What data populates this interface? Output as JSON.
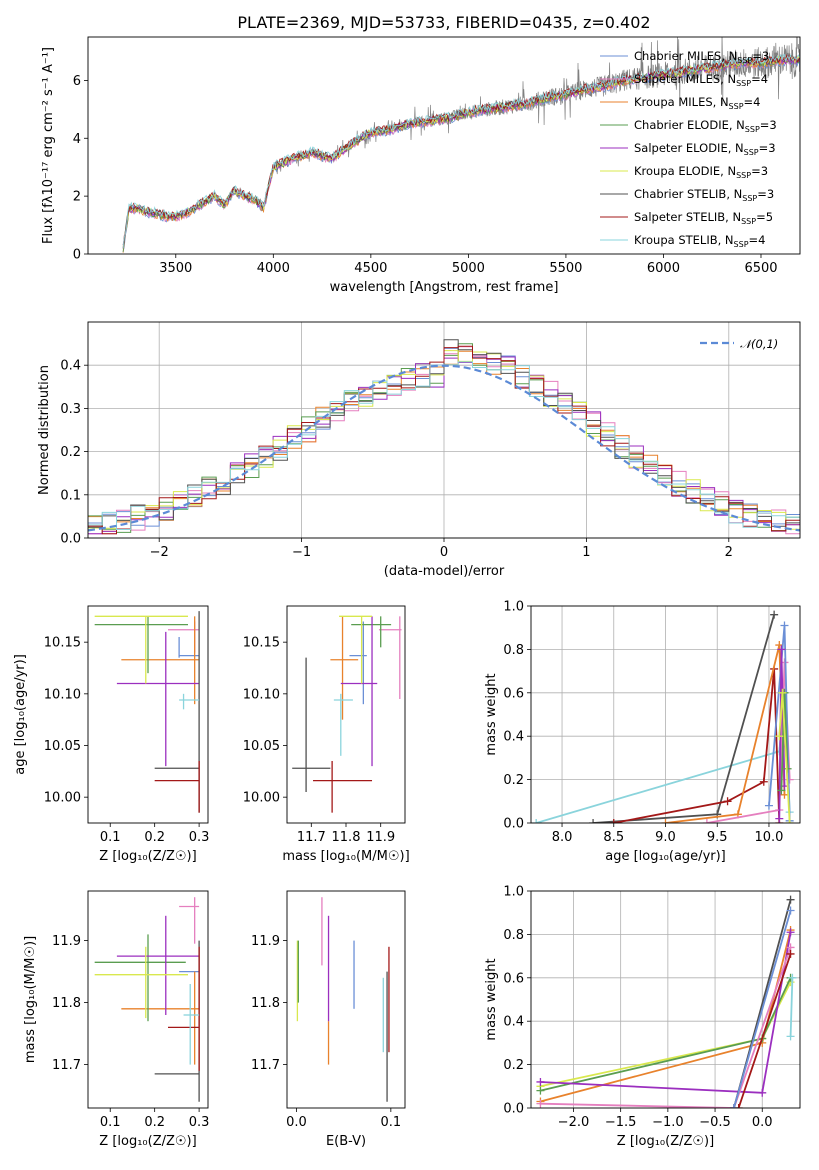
{
  "colors": {
    "Chabrier MILES": "#6b8fd6",
    "Salpeter MILES": "#e57fbf",
    "Kroupa MILES": "#e8822c",
    "Chabrier ELODIE": "#5a9d50",
    "Salpeter ELODIE": "#9b2fbf",
    "Kroupa ELODIE": "#d9e84e",
    "Chabrier STELIB": "#505050",
    "Salpeter STELIB": "#a31818",
    "Kroupa STELIB": "#8ad4dc",
    "data": "#808080",
    "normal": "#5b8ad6"
  },
  "chart_data": [
    {
      "id": "spectrum",
      "type": "line",
      "title": "PLATE=2369, MJD=53733, FIBERID=0435, z=0.402",
      "xlabel": "wavelength [Angstrom, rest frame]",
      "ylabel": "Flux [fλ10⁻¹⁷ erg cm⁻² s⁻¹ A⁻¹]",
      "xlim": [
        3050,
        6700
      ],
      "ylim": [
        0,
        7.5
      ],
      "xticks": [
        "3500",
        "4000",
        "4500",
        "5000",
        "5500",
        "6000",
        "6500"
      ],
      "yticks": [
        "0",
        "2",
        "4",
        "6"
      ],
      "legend_position": "top-right",
      "legend": [
        {
          "label": "Chabrier MILES, N",
          "sub": "SSP",
          "suffix": "=3"
        },
        {
          "label": "Salpeter MILES, N",
          "sub": "SSP",
          "suffix": "=4"
        },
        {
          "label": "Kroupa MILES, N",
          "sub": "SSP",
          "suffix": "=4"
        },
        {
          "label": "Chabrier ELODIE, N",
          "sub": "SSP",
          "suffix": "=3"
        },
        {
          "label": "Salpeter ELODIE, N",
          "sub": "SSP",
          "suffix": "=3"
        },
        {
          "label": "Kroupa ELODIE, N",
          "sub": "SSP",
          "suffix": "=3"
        },
        {
          "label": "Chabrier STELIB, N",
          "sub": "SSP",
          "suffix": "=3"
        },
        {
          "label": "Salpeter STELIB, N",
          "sub": "SSP",
          "suffix": "=5"
        },
        {
          "label": "Kroupa STELIB, N",
          "sub": "SSP",
          "suffix": "=4"
        }
      ],
      "continuum_model": {
        "x": [
          3230,
          3260,
          3300,
          3350,
          3400,
          3450,
          3500,
          3550,
          3600,
          3650,
          3700,
          3750,
          3800,
          3850,
          3900,
          3950,
          4000,
          4100,
          4200,
          4300,
          4400,
          4500,
          4600,
          4700,
          4800,
          4900,
          5000,
          5100,
          5200,
          5300,
          5400,
          5500,
          5600,
          5700,
          5800,
          5900,
          6000,
          6100,
          6200,
          6300,
          6400,
          6500,
          6600,
          6700
        ],
        "y": [
          0.2,
          1.55,
          1.6,
          1.45,
          1.4,
          1.3,
          1.3,
          1.4,
          1.6,
          1.8,
          2.0,
          1.7,
          2.2,
          2.0,
          1.9,
          1.6,
          3.0,
          3.3,
          3.5,
          3.3,
          3.8,
          4.2,
          4.3,
          4.5,
          4.6,
          4.7,
          4.9,
          5.0,
          5.1,
          5.2,
          5.4,
          5.5,
          5.7,
          5.8,
          6.0,
          6.1,
          6.2,
          6.3,
          6.4,
          6.5,
          6.6,
          6.6,
          6.7,
          6.7
        ]
      },
      "data_range": [
        3230,
        6700
      ],
      "data_noise_growth": "increases with wavelength"
    },
    {
      "id": "residuals",
      "type": "line",
      "xlabel": "(data-model)/error",
      "ylabel": "Normed distribution",
      "xlim": [
        -2.5,
        2.5
      ],
      "ylim": [
        0,
        0.5
      ],
      "xticks": [
        "−2",
        "−1",
        "0",
        "1",
        "2"
      ],
      "xtick_values": [
        -2,
        -1,
        0,
        1,
        2
      ],
      "yticks": [
        "0.0",
        "0.1",
        "0.2",
        "0.3",
        "0.4"
      ],
      "ytick_values": [
        0,
        0.1,
        0.2,
        0.3,
        0.4
      ],
      "grid": true,
      "legend_position": "top-right",
      "normal_label": "𝒩(0,1)",
      "histogram_bins": [
        -2.5,
        2.5,
        50
      ]
    },
    {
      "id": "age_vs_Z",
      "type": "scatter",
      "xlabel": "Z [log₁₀(Z/Z☉)]",
      "ylabel": "age  [log₁₀(age/yr)]",
      "xlim": [
        0.05,
        0.32
      ],
      "ylim": [
        9.975,
        10.185
      ],
      "xticks": [
        "0.1",
        "0.2",
        "0.3"
      ],
      "xtick_values": [
        0.1,
        0.2,
        0.3
      ],
      "yticks": [
        "10.00",
        "10.05",
        "10.10",
        "10.15"
      ],
      "ytick_values": [
        10.0,
        10.05,
        10.1,
        10.15
      ],
      "points": [
        {
          "model": "Chabrier MILES",
          "x": 0.255,
          "xerr": [
            0.255,
            0.3
          ],
          "y": 10.137,
          "yerr": [
            10.135,
            10.155
          ]
        },
        {
          "model": "Salpeter MILES",
          "x": 0.29,
          "xerr": [
            0.23,
            0.3
          ],
          "y": 10.162,
          "yerr": [
            10.14,
            10.17
          ]
        },
        {
          "model": "Kroupa MILES",
          "x": 0.29,
          "xerr": [
            0.125,
            0.3
          ],
          "y": 10.133,
          "yerr": [
            10.09,
            10.175
          ]
        },
        {
          "model": "Chabrier ELODIE",
          "x": 0.185,
          "xerr": [
            0.065,
            0.275
          ],
          "y": 10.167,
          "yerr": [
            10.12,
            10.175
          ]
        },
        {
          "model": "Salpeter ELODIE",
          "x": 0.225,
          "xerr": [
            0.115,
            0.3
          ],
          "y": 10.11,
          "yerr": [
            10.03,
            10.16
          ]
        },
        {
          "model": "Kroupa ELODIE",
          "x": 0.18,
          "xerr": [
            0.065,
            0.275
          ],
          "y": 10.175,
          "yerr": [
            10.11,
            10.175
          ]
        },
        {
          "model": "Chabrier STELIB",
          "x": 0.3,
          "xerr": [
            0.2,
            0.3
          ],
          "y": 10.028,
          "yerr": [
            9.985,
            10.18
          ]
        },
        {
          "model": "Salpeter STELIB",
          "x": 0.3,
          "xerr": [
            0.2,
            0.3
          ],
          "y": 10.016,
          "yerr": [
            9.985,
            10.035
          ]
        },
        {
          "model": "Kroupa STELIB",
          "x": 0.265,
          "xerr": [
            0.255,
            0.3
          ],
          "y": 10.094,
          "yerr": [
            10.085,
            10.1
          ]
        }
      ]
    },
    {
      "id": "age_vs_mass",
      "type": "scatter",
      "xlabel": "mass [log₁₀(M/M☉)]",
      "xlim": [
        11.63,
        11.97
      ],
      "ylim": [
        9.975,
        10.185
      ],
      "xticks": [
        "11.7",
        "11.8",
        "11.9"
      ],
      "xtick_values": [
        11.7,
        11.8,
        11.9
      ],
      "yticks": [
        "10.00",
        "10.05",
        "10.10",
        "10.15"
      ],
      "ytick_values": [
        10.0,
        10.05,
        10.1,
        10.15
      ],
      "points": [
        {
          "model": "Chabrier MILES",
          "x": 11.85,
          "xerr": [
            11.81,
            11.86
          ],
          "y": 10.137,
          "yerr": [
            10.09,
            10.17
          ]
        },
        {
          "model": "Salpeter MILES",
          "x": 11.955,
          "xerr": [
            11.895,
            11.96
          ],
          "y": 10.162,
          "yerr": [
            10.095,
            10.175
          ]
        },
        {
          "model": "Kroupa MILES",
          "x": 11.79,
          "xerr": [
            11.755,
            11.835
          ],
          "y": 10.133,
          "yerr": [
            10.075,
            10.175
          ]
        },
        {
          "model": "Chabrier ELODIE",
          "x": 11.9,
          "xerr": [
            11.815,
            11.93
          ],
          "y": 10.167,
          "yerr": [
            10.145,
            10.175
          ]
        },
        {
          "model": "Salpeter ELODIE",
          "x": 11.875,
          "xerr": [
            11.785,
            11.89
          ],
          "y": 10.11,
          "yerr": [
            10.03,
            10.175
          ]
        },
        {
          "model": "Kroupa ELODIE",
          "x": 11.845,
          "xerr": [
            11.78,
            11.875
          ],
          "y": 10.175,
          "yerr": [
            10.11,
            10.175
          ]
        },
        {
          "model": "Chabrier STELIB",
          "x": 11.685,
          "xerr": [
            11.645,
            11.755
          ],
          "y": 10.028,
          "yerr": [
            10.005,
            10.135
          ]
        },
        {
          "model": "Salpeter STELIB",
          "x": 11.76,
          "xerr": [
            11.705,
            11.875
          ],
          "y": 10.016,
          "yerr": [
            9.985,
            10.035
          ]
        },
        {
          "model": "Kroupa STELIB",
          "x": 11.785,
          "xerr": [
            11.765,
            11.82
          ],
          "y": 10.094,
          "yerr": [
            10.04,
            10.1
          ]
        }
      ]
    },
    {
      "id": "weight_vs_age",
      "type": "line",
      "xlabel": "age  [log₁₀(age/yr)]",
      "ylabel": "mass weight",
      "xlim": [
        7.7,
        10.3
      ],
      "ylim": [
        0,
        1
      ],
      "xticks": [
        "8.0",
        "8.5",
        "9.0",
        "9.5",
        "10.0"
      ],
      "xtick_values": [
        8.0,
        8.5,
        9.0,
        9.5,
        10.0
      ],
      "yticks": [
        "0.0",
        "0.2",
        "0.4",
        "0.6",
        "0.8",
        "1.0"
      ],
      "ytick_values": [
        0,
        0.2,
        0.4,
        0.6,
        0.8,
        1.0
      ],
      "grid": true,
      "series": [
        {
          "model": "Kroupa STELIB",
          "x": [
            7.75,
            10.1,
            10.15,
            10.2
          ],
          "y": [
            0.0,
            0.33,
            0.6,
            0.05
          ]
        },
        {
          "model": "Chabrier STELIB",
          "x": [
            8.3,
            9.5,
            10.05
          ],
          "y": [
            0.0,
            0.04,
            0.96
          ]
        },
        {
          "model": "Salpeter STELIB",
          "x": [
            8.5,
            9.6,
            9.95,
            10.05,
            10.1
          ],
          "y": [
            0.0,
            0.1,
            0.19,
            0.71,
            0.0
          ]
        },
        {
          "model": "Kroupa MILES",
          "x": [
            9.0,
            9.7,
            10.1,
            10.15
          ],
          "y": [
            0.0,
            0.04,
            0.82,
            0.13
          ]
        },
        {
          "model": "Salpeter MILES",
          "x": [
            9.4,
            10.1,
            10.15,
            10.2
          ],
          "y": [
            0.0,
            0.06,
            0.74,
            0.2
          ]
        },
        {
          "model": "Chabrier MILES",
          "x": [
            10.0,
            10.15,
            10.2
          ],
          "y": [
            0.08,
            0.91,
            0.01
          ]
        },
        {
          "model": "Salpeter ELODIE",
          "x": [
            10.1,
            10.12,
            10.15
          ],
          "y": [
            0.02,
            0.8,
            0.17
          ]
        },
        {
          "model": "Chabrier ELODIE",
          "x": [
            10.12,
            10.15,
            10.18
          ],
          "y": [
            0.15,
            0.6,
            0.25
          ]
        },
        {
          "model": "Kroupa ELODIE",
          "x": [
            10.1,
            10.13,
            10.2
          ],
          "y": [
            0.4,
            0.6,
            0.0
          ]
        }
      ]
    },
    {
      "id": "mass_vs_Z",
      "type": "scatter",
      "xlabel": "Z [log₁₀(Z/Z☉)]",
      "ylabel": "mass [log₁₀(M/M☉)]",
      "xlim": [
        0.05,
        0.32
      ],
      "ylim": [
        11.63,
        11.98
      ],
      "xticks": [
        "0.1",
        "0.2",
        "0.3"
      ],
      "xtick_values": [
        0.1,
        0.2,
        0.3
      ],
      "yticks": [
        "11.7",
        "11.8",
        "11.9"
      ],
      "ytick_values": [
        11.7,
        11.8,
        11.9
      ],
      "points": [
        {
          "model": "Chabrier MILES",
          "x": 0.28,
          "xerr": [
            0.255,
            0.3
          ],
          "y": 11.85,
          "yerr": [
            11.85,
            11.85
          ]
        },
        {
          "model": "Salpeter MILES",
          "x": 0.29,
          "xerr": [
            0.255,
            0.3
          ],
          "y": 11.955,
          "yerr": [
            11.895,
            11.97
          ]
        },
        {
          "model": "Kroupa MILES",
          "x": 0.29,
          "xerr": [
            0.125,
            0.3
          ],
          "y": 11.79,
          "yerr": [
            11.7,
            11.85
          ]
        },
        {
          "model": "Chabrier ELODIE",
          "x": 0.185,
          "xerr": [
            0.065,
            0.27
          ],
          "y": 11.865,
          "yerr": [
            11.77,
            11.91
          ]
        },
        {
          "model": "Salpeter ELODIE",
          "x": 0.225,
          "xerr": [
            0.115,
            0.3
          ],
          "y": 11.875,
          "yerr": [
            11.78,
            11.94
          ]
        },
        {
          "model": "Kroupa ELODIE",
          "x": 0.18,
          "xerr": [
            0.065,
            0.275
          ],
          "y": 11.845,
          "yerr": [
            11.775,
            11.89
          ]
        },
        {
          "model": "Chabrier STELIB",
          "x": 0.3,
          "xerr": [
            0.2,
            0.3
          ],
          "y": 11.685,
          "yerr": [
            11.64,
            11.9
          ]
        },
        {
          "model": "Salpeter STELIB",
          "x": 0.3,
          "xerr": [
            0.23,
            0.3
          ],
          "y": 11.76,
          "yerr": [
            11.69,
            11.89
          ]
        },
        {
          "model": "Kroupa STELIB",
          "x": 0.28,
          "xerr": [
            0.265,
            0.3
          ],
          "y": 11.78,
          "yerr": [
            11.7,
            11.83
          ]
        }
      ]
    },
    {
      "id": "mass_vs_EBV",
      "type": "scatter",
      "xlabel": "E(B-V)",
      "xlim": [
        -0.01,
        0.115
      ],
      "ylim": [
        11.63,
        11.98
      ],
      "xticks": [
        "0.0",
        "0.1"
      ],
      "xtick_values": [
        0.0,
        0.1
      ],
      "yticks": [
        "11.7",
        "11.8",
        "11.9"
      ],
      "ytick_values": [
        11.7,
        11.8,
        11.9
      ],
      "points": [
        {
          "model": "Kroupa ELODIE",
          "x": 0.001,
          "yerr": [
            11.77,
            11.9
          ]
        },
        {
          "model": "Chabrier ELODIE",
          "x": 0.002,
          "yerr": [
            11.8,
            11.9
          ]
        },
        {
          "model": "Salpeter MILES",
          "x": 0.027,
          "yerr": [
            11.86,
            11.97
          ]
        },
        {
          "model": "Kroupa MILES",
          "x": 0.034,
          "yerr": [
            11.7,
            11.77
          ]
        },
        {
          "model": "Salpeter ELODIE",
          "x": 0.034,
          "yerr": [
            11.77,
            11.94
          ]
        },
        {
          "model": "Chabrier MILES",
          "x": 0.061,
          "yerr": [
            11.79,
            11.9
          ]
        },
        {
          "model": "Kroupa STELIB",
          "x": 0.092,
          "yerr": [
            11.72,
            11.84
          ]
        },
        {
          "model": "Chabrier STELIB",
          "x": 0.096,
          "yerr": [
            11.64,
            11.85
          ]
        },
        {
          "model": "Salpeter STELIB",
          "x": 0.098,
          "yerr": [
            11.72,
            11.89
          ]
        }
      ]
    },
    {
      "id": "weight_vs_Z",
      "type": "line",
      "xlabel": "Z [log₁₀(Z/Z☉)]",
      "ylabel": "mass weight",
      "xlim": [
        -2.45,
        0.4
      ],
      "ylim": [
        0,
        1
      ],
      "xticks": [
        "−2.0",
        "−1.5",
        "−1.0",
        "−0.5",
        "0.0"
      ],
      "xtick_values": [
        -2.0,
        -1.5,
        -1.0,
        -0.5,
        0.0
      ],
      "yticks": [
        "0.0",
        "0.2",
        "0.4",
        "0.6",
        "0.8",
        "1.0"
      ],
      "ytick_values": [
        0,
        0.2,
        0.4,
        0.6,
        0.8,
        1.0
      ],
      "grid": true,
      "series": [
        {
          "model": "Kroupa MILES",
          "x": [
            -2.35,
            0.0,
            0.3
          ],
          "y": [
            0.03,
            0.3,
            0.82
          ]
        },
        {
          "model": "Kroupa ELODIE",
          "x": [
            -2.35,
            0.0,
            0.3
          ],
          "y": [
            0.1,
            0.32,
            0.58
          ]
        },
        {
          "model": "Chabrier ELODIE",
          "x": [
            -2.35,
            0.0,
            0.3
          ],
          "y": [
            0.08,
            0.32,
            0.6
          ]
        },
        {
          "model": "Salpeter ELODIE",
          "x": [
            -2.35,
            0.0,
            0.3
          ],
          "y": [
            0.12,
            0.07,
            0.81
          ]
        },
        {
          "model": "Salpeter MILES",
          "x": [
            -2.35,
            -0.3,
            0.3
          ],
          "y": [
            0.02,
            0.0,
            0.74
          ]
        },
        {
          "model": "Chabrier STELIB",
          "x": [
            -0.3,
            0.3
          ],
          "y": [
            0.0,
            0.96
          ]
        },
        {
          "model": "Salpeter STELIB",
          "x": [
            -0.25,
            0.3
          ],
          "y": [
            0.0,
            0.71
          ]
        },
        {
          "model": "Chabrier MILES",
          "x": [
            -0.3,
            0.3
          ],
          "y": [
            0.0,
            0.91
          ]
        },
        {
          "model": "Kroupa STELIB",
          "x": [
            0.3,
            0.32
          ],
          "y": [
            0.33,
            0.6
          ]
        }
      ]
    }
  ]
}
